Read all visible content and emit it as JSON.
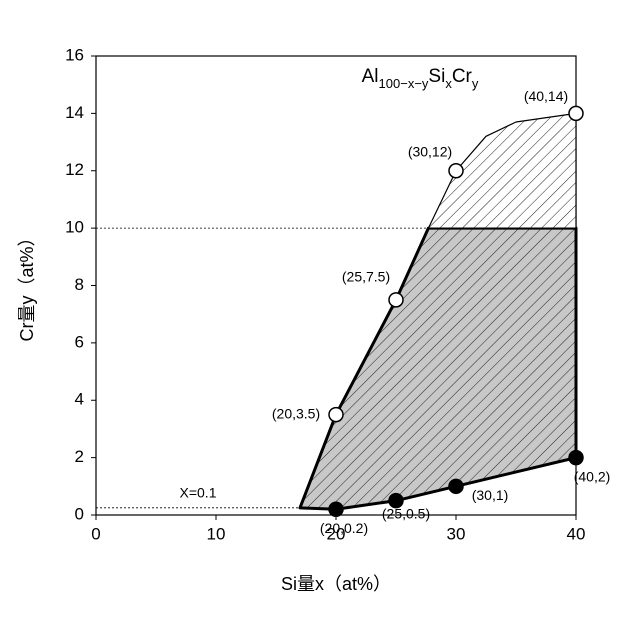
{
  "chart_data": {
    "type": "scatter",
    "title_parts": [
      {
        "text": "Al",
        "sub": false
      },
      {
        "text": "100−x−y",
        "sub": true
      },
      {
        "text": "Si",
        "sub": false
      },
      {
        "text": "x",
        "sub": true
      },
      {
        "text": "Cr",
        "sub": false
      },
      {
        "text": "y",
        "sub": true
      }
    ],
    "xlabel": "Si量x（at%）",
    "ylabel": "Cr量y（at%）",
    "xlim": [
      0,
      40
    ],
    "ylim": [
      0,
      16
    ],
    "xticks": [
      0,
      10,
      20,
      30,
      40
    ],
    "yticks": [
      0,
      2,
      4,
      6,
      8,
      10,
      12,
      14,
      16
    ],
    "regions": [
      {
        "x": [
          17,
          20,
          25,
          30,
          40,
          40,
          27.7,
          25,
          20
        ],
        "y": [
          0.25,
          0.2,
          0.5,
          1,
          2,
          10,
          10,
          7.5,
          3.5
        ],
        "fill": "#c8c8c8",
        "stroke_width": 3
      },
      {
        "x": [
          27.7,
          30,
          32.5,
          35,
          40,
          40
        ],
        "y": [
          10,
          12,
          13.2,
          13.7,
          14,
          10
        ],
        "fill": "#ffffff",
        "stroke_width": 1.2
      }
    ],
    "reference_lines": [
      {
        "y": 10,
        "x": [
          0,
          27.7
        ]
      },
      {
        "y": 0.25,
        "x": [
          0,
          17
        ],
        "label": "X=0.1"
      }
    ],
    "series": [
      {
        "marker": "open",
        "color": "#ffffff",
        "x": [
          20,
          25,
          30,
          40
        ],
        "values": [
          3.5,
          7.5,
          12,
          14
        ],
        "value_labels": [
          "(20,3.5)",
          "(25,7.5)",
          "(30,12)",
          "(40,14)"
        ]
      },
      {
        "marker": "filled",
        "color": "#000000",
        "x": [
          20,
          25,
          30,
          40
        ],
        "values": [
          0.2,
          0.5,
          1,
          2
        ],
        "value_labels": [
          "(20,0.2)",
          "(25,0.5)",
          "(30,1)",
          "(40,2)"
        ]
      }
    ]
  }
}
